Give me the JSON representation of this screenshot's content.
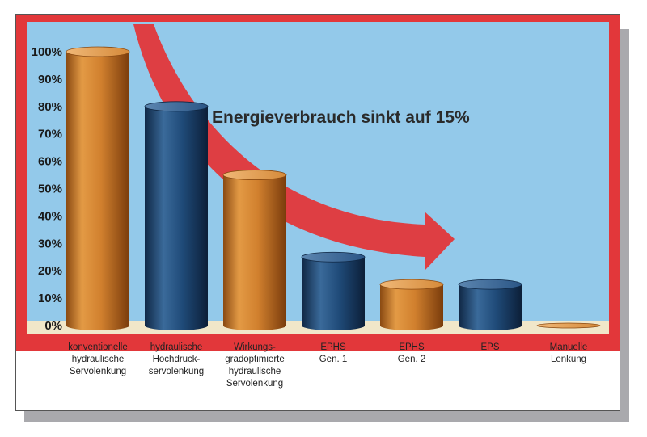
{
  "chart_data": {
    "type": "bar",
    "title": "",
    "xlabel": "",
    "ylabel": "",
    "ylim": [
      0,
      100
    ],
    "yticks": [
      "0%",
      "10%",
      "20%",
      "30%",
      "40%",
      "50%",
      "60%",
      "70%",
      "80%",
      "90%",
      "100%"
    ],
    "categories": [
      [
        "konventionelle",
        "hydraulische",
        "Servolenkung"
      ],
      [
        "hydraulische",
        "Hochdruck-",
        "servolenkung"
      ],
      [
        "Wirkungs-",
        "gradoptimierte",
        "hydraulische",
        "Servolenkung"
      ],
      [
        "EPHS",
        "Gen. 1"
      ],
      [
        "EPHS",
        "Gen. 2"
      ],
      [
        "EPS"
      ],
      [
        "Manuelle",
        "Lenkung"
      ]
    ],
    "values": [
      100,
      80,
      55,
      25,
      15,
      15,
      0
    ],
    "bar_colors": [
      "#d1802e",
      "#1f4a78",
      "#d1802e",
      "#1f4a78",
      "#d1802e",
      "#1f4a78",
      "#d1802e"
    ],
    "annotation": "Energieverbrauch sinkt auf 15%",
    "legend": "none",
    "grid": false
  },
  "colors": {
    "background_red": "#e2373a",
    "plot_blue": "#93c9ea",
    "orange": "#d1802e",
    "navy": "#1f4a78"
  }
}
